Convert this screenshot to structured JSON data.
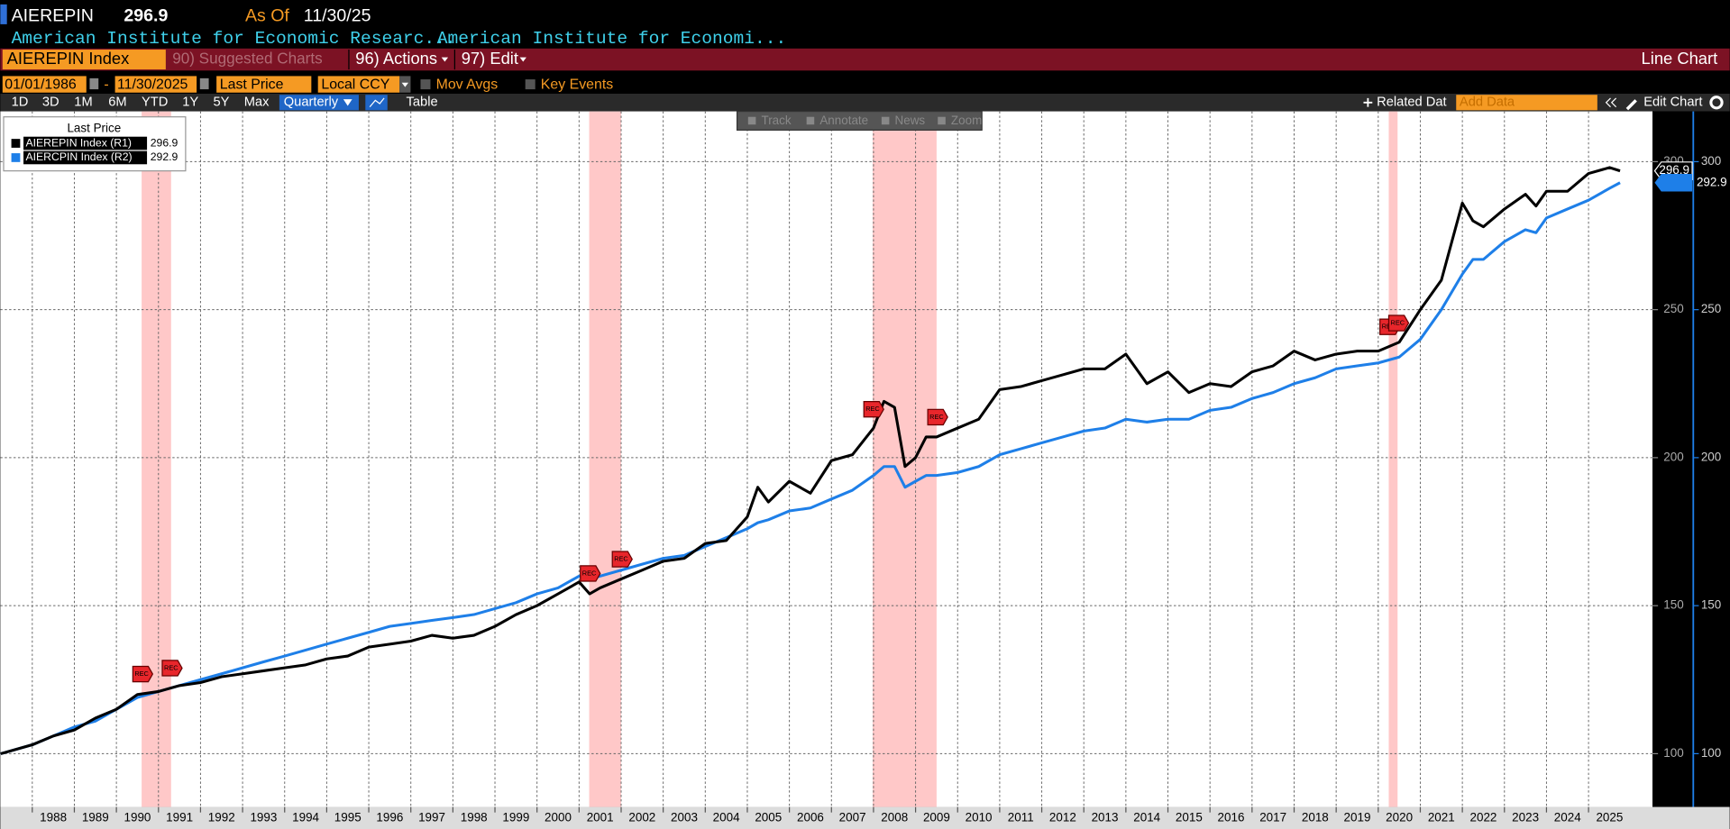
{
  "header": {
    "ticker": "AIEREPIN",
    "as_of_label": "As Of",
    "as_of_date": "11/30/25",
    "descriptions": [
      "American Institute for Economic Researc...",
      "American Institute for Economi..."
    ]
  },
  "menu": {
    "security": "AIEREPIN Index",
    "suggested": "90) Suggested Charts",
    "actions": "96) Actions",
    "edit": "97) Edit",
    "chart_type": "Line Chart"
  },
  "controls": {
    "start_date": "01/01/1986",
    "separator": "-",
    "end_date": "11/30/2025",
    "field": "Last Price",
    "currency": "Local CCY",
    "mov_avgs": "Mov Avgs",
    "key_events": "Key Events"
  },
  "periods": [
    "1D",
    "3D",
    "1M",
    "6M",
    "YTD",
    "1Y",
    "5Y",
    "Max"
  ],
  "frequency": "Quarterly",
  "table": "Table",
  "related_data": "Related Dat",
  "add_data": "Add Data",
  "edit_chart": "Edit Chart",
  "tools": [
    "Track",
    "Annotate",
    "News",
    "Zoom"
  ],
  "chart_data": {
    "type": "line",
    "legend_title": "Last Price",
    "grid": true,
    "recession_label": "REC",
    "x": [
      1987.25,
      1988,
      1988.5,
      1989,
      1989.5,
      1990,
      1990.5,
      1991,
      1991.5,
      1992,
      1992.5,
      1993,
      1993.5,
      1994,
      1994.5,
      1995,
      1995.5,
      1996,
      1996.5,
      1997,
      1997.5,
      1998,
      1998.5,
      1999,
      1999.5,
      2000,
      2000.5,
      2001,
      2001.25,
      2001.5,
      2002,
      2002.5,
      2003,
      2003.5,
      2004,
      2004.5,
      2005,
      2005.25,
      2005.5,
      2006,
      2006.5,
      2007,
      2007.5,
      2008,
      2008.25,
      2008.5,
      2008.75,
      2009,
      2009.25,
      2009.5,
      2010,
      2010.5,
      2011,
      2011.5,
      2012,
      2012.5,
      2013,
      2013.5,
      2014,
      2014.5,
      2015,
      2015.5,
      2016,
      2016.5,
      2017,
      2017.5,
      2018,
      2018.5,
      2019,
      2019.5,
      2020,
      2020.5,
      2021,
      2021.5,
      2022,
      2022.25,
      2022.5,
      2023,
      2023.5,
      2023.75,
      2024,
      2024.5,
      2025,
      2025.5,
      2025.75
    ],
    "series": [
      {
        "name": "AIEREPIN Index  (R1)",
        "color": "#000000",
        "values": [
          100,
          103,
          106,
          108,
          112,
          115,
          120,
          121,
          123,
          124,
          126,
          127,
          128,
          129,
          130,
          132,
          133,
          136,
          137,
          138,
          140,
          139,
          140,
          143,
          147,
          150,
          154,
          158,
          154,
          156,
          159,
          162,
          165,
          166,
          171,
          172,
          180,
          190,
          185,
          192,
          188,
          199,
          201,
          210,
          219,
          217,
          197,
          200,
          207,
          207,
          210,
          213,
          223,
          224,
          226,
          228,
          230,
          230,
          235,
          225,
          229,
          222,
          225,
          224,
          229,
          231,
          236,
          233,
          235,
          236,
          236,
          239,
          250,
          260,
          286,
          280,
          278,
          284,
          289,
          285,
          290,
          290,
          296,
          298,
          296.9
        ]
      },
      {
        "name": "AIERCPIN Index  (R2)",
        "color": "#1e7fe8",
        "values": [
          100,
          103,
          106,
          109,
          111,
          115,
          119,
          121,
          123,
          125,
          127,
          129,
          131,
          133,
          135,
          137,
          139,
          141,
          143,
          144,
          145,
          146,
          147,
          149,
          151,
          154,
          156,
          160,
          159,
          160,
          162,
          164,
          166,
          167,
          170,
          173,
          176,
          178,
          179,
          182,
          183,
          186,
          189,
          194,
          197,
          197,
          190,
          192,
          194,
          194,
          195,
          197,
          201,
          203,
          205,
          207,
          209,
          210,
          213,
          212,
          213,
          213,
          216,
          217,
          220,
          222,
          225,
          227,
          230,
          231,
          232,
          234,
          240,
          250,
          262,
          267,
          267,
          273,
          277,
          276,
          281,
          284,
          287,
          291,
          292.9
        ]
      }
    ],
    "xlim": [
      1987.24,
      2026.52
    ],
    "ylim": [
      82,
      317
    ],
    "xticks": [
      1988,
      1989,
      1990,
      1991,
      1992,
      1993,
      1994,
      1995,
      1996,
      1997,
      1998,
      1999,
      2000,
      2001,
      2002,
      2003,
      2004,
      2005,
      2006,
      2007,
      2008,
      2009,
      2010,
      2011,
      2012,
      2013,
      2014,
      2015,
      2016,
      2017,
      2018,
      2019,
      2020,
      2021,
      2022,
      2023,
      2024,
      2025
    ],
    "yticks": [
      100,
      150,
      200,
      250,
      300
    ],
    "recessions": [
      [
        1990.6,
        1991.3
      ],
      [
        2001.24,
        2002.0
      ],
      [
        2007.98,
        2009.5
      ],
      [
        2020.25,
        2020.46
      ]
    ]
  }
}
